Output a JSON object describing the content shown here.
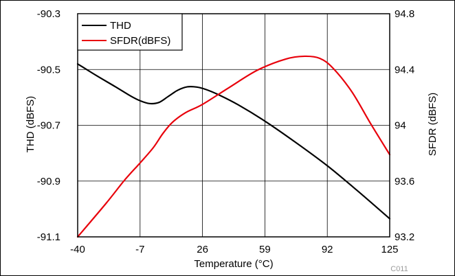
{
  "chart_data": {
    "type": "line",
    "xlabel": "Temperature (°C)",
    "ylabel_left": "THD (dBFS)",
    "ylabel_right": "SFDR (dBFS)",
    "corner_label": "C011",
    "xlim": [
      -40,
      125
    ],
    "ylim_left": [
      -91.1,
      -90.3
    ],
    "ylim_right": [
      93.2,
      94.8
    ],
    "x_ticks": [
      -40,
      -7,
      26,
      59,
      92,
      125
    ],
    "y_ticks_left": [
      -90.3,
      -90.5,
      -90.7,
      -90.9,
      -91.1
    ],
    "y_ticks_right": [
      94.8,
      94.4,
      94,
      93.6,
      93.2
    ],
    "grid": true,
    "legend_position": "top-left",
    "series": [
      {
        "name": "THD",
        "axis": "left",
        "color": "#000000",
        "x": [
          -40,
          -30,
          -20,
          -12,
          -7,
          -2,
          3,
          8,
          13,
          18,
          23,
          28,
          35,
          45,
          59,
          75,
          92,
          108,
          125
        ],
        "y": [
          -90.48,
          -90.522,
          -90.562,
          -90.595,
          -90.612,
          -90.622,
          -90.618,
          -90.596,
          -90.574,
          -90.562,
          -90.563,
          -90.572,
          -90.592,
          -90.627,
          -90.685,
          -90.76,
          -90.845,
          -90.935,
          -91.035
        ]
      },
      {
        "name": "SFDR(dBFS)",
        "axis": "right",
        "color": "#e8000b",
        "x": [
          -40,
          -25,
          -15,
          -7,
          0,
          5,
          10,
          17,
          26,
          40,
          55,
          70,
          80,
          88,
          95,
          105,
          115,
          125
        ],
        "y": [
          93.2,
          93.44,
          93.61,
          93.73,
          93.84,
          93.94,
          94.02,
          94.09,
          94.15,
          94.27,
          94.395,
          94.475,
          94.495,
          94.48,
          94.41,
          94.24,
          94.01,
          93.79
        ]
      }
    ]
  }
}
